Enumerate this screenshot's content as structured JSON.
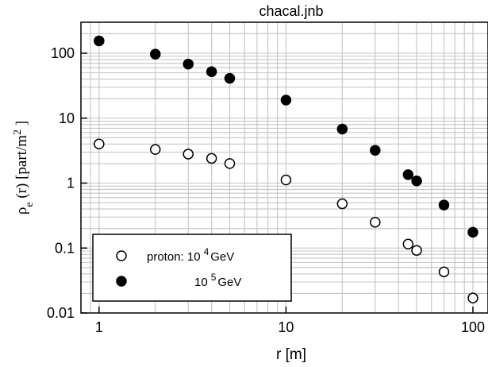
{
  "chart_data": {
    "type": "scatter",
    "title": "chacal.jnb",
    "xlabel": "r [m]",
    "ylabel": {
      "rho": "ρ",
      "sub": "e",
      "args": " (r) [part/m",
      "sup": "2",
      "close": " ]"
    },
    "x_scale": "log",
    "y_scale": "log",
    "xlim": [
      0.8,
      100
    ],
    "ylim": [
      0.01,
      300
    ],
    "x_ticks": [
      {
        "value": 1,
        "label": "1"
      },
      {
        "value": 10,
        "label": "10"
      },
      {
        "value": 100,
        "label": "100"
      }
    ],
    "y_ticks": [
      {
        "value": 100,
        "label": "100"
      },
      {
        "value": 10,
        "label": "10"
      },
      {
        "value": 1,
        "label": "1"
      },
      {
        "value": 0.1,
        "label": "0.1"
      },
      {
        "value": 0.01,
        "label": "0.01"
      }
    ],
    "grid": true,
    "legend_position": "bottom-left",
    "series": [
      {
        "legend": {
          "prefix": "proton: 10",
          "sup": "4",
          "unit": "GeV"
        },
        "marker": "open-circle",
        "x": [
          1,
          2,
          3,
          4,
          5,
          10,
          20,
          30,
          45,
          50,
          70,
          100
        ],
        "y": [
          4.0,
          3.3,
          2.8,
          2.4,
          2.0,
          1.12,
          0.48,
          0.25,
          0.115,
          0.092,
          0.043,
          0.017
        ]
      },
      {
        "legend": {
          "prefix": "10",
          "sup": "5",
          "unit": "GeV"
        },
        "marker": "filled-circle",
        "x": [
          1,
          2,
          3,
          4,
          5,
          10,
          20,
          30,
          45,
          50,
          70,
          100
        ],
        "y": [
          155,
          97,
          68,
          52,
          41,
          19,
          6.8,
          3.2,
          1.35,
          1.08,
          0.46,
          0.175
        ]
      }
    ]
  }
}
